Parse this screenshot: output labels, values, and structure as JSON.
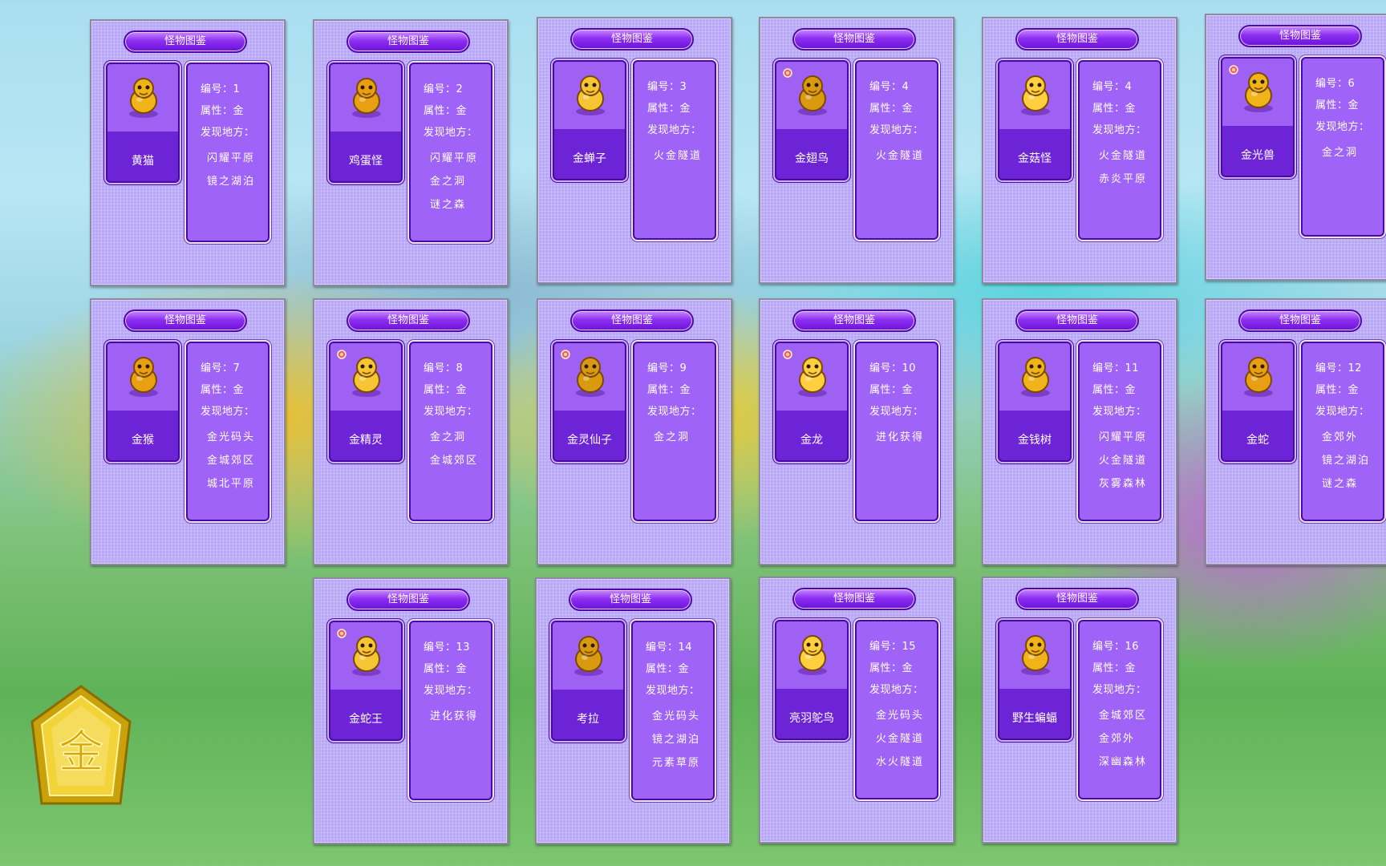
{
  "header_label": "怪物图鉴",
  "labels": {
    "number_prefix": "编号：",
    "attribute_prefix": "属性：",
    "found_label": "发现地方："
  },
  "emblem": {
    "char": "金",
    "color": "#f4d21c"
  },
  "colors": {
    "card_bg": "#b8a6f7",
    "panel": "#9f63f7",
    "header": "#8d2ff2"
  },
  "monsters": [
    {
      "name": "黄猫",
      "number": "1",
      "attribute": "金",
      "rare": false,
      "icon": "yellow-cat-icon",
      "locations": [
        "闪耀平原",
        "镜之湖泊"
      ]
    },
    {
      "name": "鸡蛋怪",
      "number": "2",
      "attribute": "金",
      "rare": false,
      "icon": "egg-monster-icon",
      "locations": [
        "闪耀平原",
        "金之洞",
        "谜之森"
      ]
    },
    {
      "name": "金蝉子",
      "number": "3",
      "attribute": "金",
      "rare": false,
      "icon": "golden-cicada-icon",
      "locations": [
        "火金隧道"
      ]
    },
    {
      "name": "金翅鸟",
      "number": "4",
      "attribute": "金",
      "rare": true,
      "icon": "golden-wing-bird-icon",
      "locations": [
        "火金隧道"
      ]
    },
    {
      "name": "金菇怪",
      "number": "4",
      "attribute": "金",
      "rare": false,
      "icon": "golden-mushroom-icon",
      "locations": [
        "火金隧道",
        "赤炎平原"
      ]
    },
    {
      "name": "金光兽",
      "number": "6",
      "attribute": "金",
      "rare": true,
      "icon": "golden-light-beast-icon",
      "locations": [
        "金之洞"
      ]
    },
    {
      "name": "金猴",
      "number": "7",
      "attribute": "金",
      "rare": false,
      "icon": "golden-monkey-icon",
      "locations": [
        "金光码头",
        "金城郊区",
        "城北平原"
      ]
    },
    {
      "name": "金精灵",
      "number": "8",
      "attribute": "金",
      "rare": true,
      "icon": "golden-sprite-icon",
      "locations": [
        "金之洞",
        "金城郊区"
      ]
    },
    {
      "name": "金灵仙子",
      "number": "9",
      "attribute": "金",
      "rare": true,
      "icon": "golden-fairy-icon",
      "locations": [
        "金之洞"
      ]
    },
    {
      "name": "金龙",
      "number": "10",
      "attribute": "金",
      "rare": true,
      "icon": "golden-dragon-icon",
      "locations": [
        "进化获得"
      ]
    },
    {
      "name": "金钱树",
      "number": "11",
      "attribute": "金",
      "rare": false,
      "icon": "money-tree-icon",
      "locations": [
        "闪耀平原",
        "火金隧道",
        "灰雾森林"
      ]
    },
    {
      "name": "金蛇",
      "number": "12",
      "attribute": "金",
      "rare": false,
      "icon": "golden-snake-icon",
      "locations": [
        "金郊外",
        "镜之湖泊",
        "谜之森"
      ]
    },
    {
      "name": "金蛇王",
      "number": "13",
      "attribute": "金",
      "rare": true,
      "icon": "golden-snake-king-icon",
      "locations": [
        "进化获得"
      ]
    },
    {
      "name": "考拉",
      "number": "14",
      "attribute": "金",
      "rare": false,
      "icon": "koala-icon",
      "locations": [
        "金光码头",
        "镜之湖泊",
        "元素草原"
      ]
    },
    {
      "name": "亮羽鸵鸟",
      "number": "15",
      "attribute": "金",
      "rare": false,
      "icon": "bright-feather-ostrich-icon",
      "locations": [
        "金光码头",
        "火金隧道",
        "水火隧道"
      ]
    },
    {
      "name": "野生蝙蝠",
      "number": "16",
      "attribute": "金",
      "rare": false,
      "icon": "wild-bat-icon",
      "locations": [
        "金城郊区",
        "金郊外",
        "深幽森林"
      ]
    }
  ]
}
